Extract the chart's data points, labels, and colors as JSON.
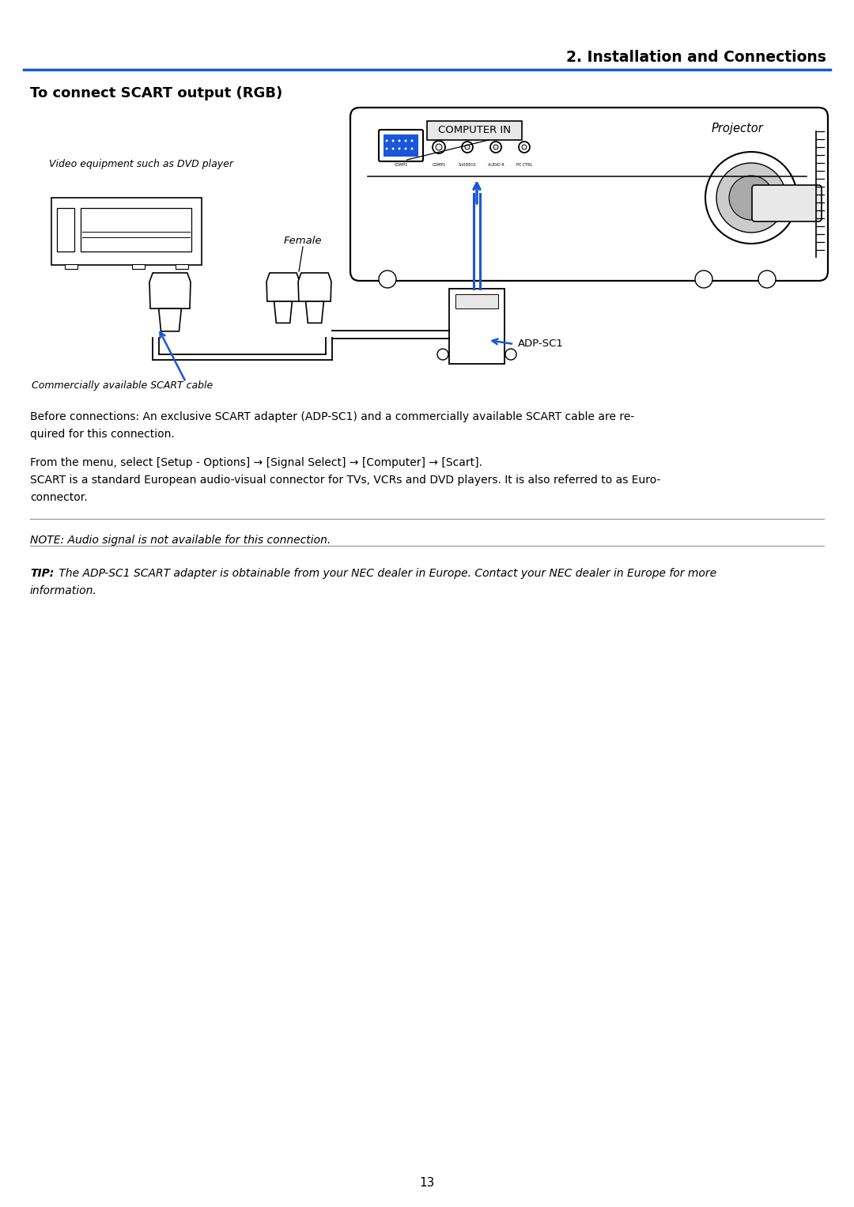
{
  "page_background": "#ffffff",
  "header_text": "2. Installation and Connections",
  "header_line_color": "#1a56db",
  "section_title": "To connect SCART output (RGB)",
  "body_text_1_line1": "Before connections: An exclusive SCART adapter (ADP-SC1) and a commercially available SCART cable are re-",
  "body_text_1_line2": "quired for this connection.",
  "body_text_2_line1": "From the menu, select [Setup - Options] → [Signal Select] → [Computer] → [Scart].",
  "body_text_2_line2": "SCART is a standard European audio-visual connector for TVs, VCRs and DVD players. It is also referred to as Euro-",
  "body_text_2_line3": "connector.",
  "note_text": "NOTE: Audio signal is not available for this connection.",
  "tip_bold": "TIP:",
  "tip_italic_line1": " The ADP-SC1 SCART adapter is obtainable from your NEC dealer in Europe. Contact your NEC dealer in Europe for more",
  "tip_italic_line2": "information.",
  "label_computer_in": "COMPUTER IN",
  "label_projector": "Projector",
  "label_female": "Female",
  "label_adp_sc1": "ADP-SC1",
  "label_video_eq": "Video equipment such as DVD player",
  "label_scart_cable": "Commercially available SCART cable",
  "page_number": "13",
  "blue": "#1a56db",
  "black": "#000000",
  "gray_line": "#999999",
  "light_gray": "#e8e8e8",
  "mid_gray": "#cccccc"
}
